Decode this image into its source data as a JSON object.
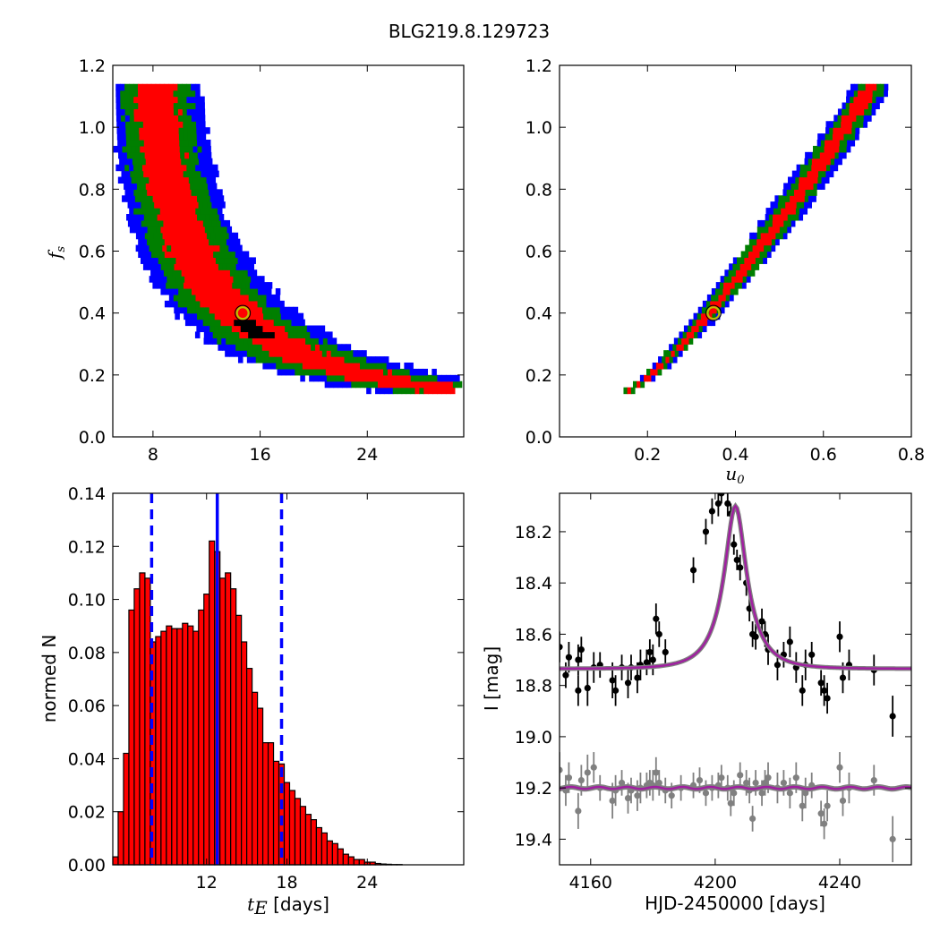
{
  "figure": {
    "title": "BLG219.8.129723"
  },
  "chart_data": [
    {
      "id": "tE_fs",
      "type": "heatmap",
      "xlim": [
        5,
        31.2
      ],
      "ylim": [
        0,
        1.2
      ],
      "xticks": [
        8,
        16,
        24
      ],
      "yticks": [
        0.0,
        0.2,
        0.4,
        0.6,
        0.8,
        1.0,
        1.2
      ],
      "ytick_labels": [
        "0.0",
        "0.2",
        "0.4",
        "0.6",
        "0.8",
        "1.0",
        "1.2"
      ],
      "xlabel": "",
      "ylabel": "f_s",
      "ylabel_main": "f",
      "ylabel_sub": "s",
      "contour_colors": {
        "outer": "#0000ff",
        "middle": "#007f00",
        "inner": "#ff0000",
        "core": "#000000"
      },
      "best_fit": {
        "x": 14.7,
        "y": 0.4,
        "color": "#bfbf00"
      }
    },
    {
      "id": "u0_fs",
      "type": "heatmap",
      "xlim": [
        0,
        0.8
      ],
      "ylim": [
        0,
        1.2
      ],
      "xticks": [
        0.2,
        0.4,
        0.6,
        0.8
      ],
      "xtick_labels": [
        "0.2",
        "0.4",
        "0.6",
        "0.8"
      ],
      "yticks": [
        0.0,
        0.2,
        0.4,
        0.6,
        0.8,
        1.0,
        1.2
      ],
      "ytick_labels": [
        "0.0",
        "0.2",
        "0.4",
        "0.6",
        "0.8",
        "1.0",
        "1.2"
      ],
      "xlabel": "u_0",
      "xlabel_main": "u",
      "xlabel_sub": "0",
      "best_fit": {
        "x": 0.35,
        "y": 0.4,
        "color": "#bfbf00"
      }
    },
    {
      "id": "tE_hist",
      "type": "bar",
      "xlim": [
        5,
        31.2
      ],
      "ylim": [
        0,
        0.14
      ],
      "xticks": [
        12,
        18,
        24
      ],
      "yticks": [
        0.0,
        0.02,
        0.04,
        0.06,
        0.08,
        0.1,
        0.12,
        0.14
      ],
      "ytick_labels": [
        "0.00",
        "0.02",
        "0.04",
        "0.06",
        "0.08",
        "0.10",
        "0.12",
        "0.14"
      ],
      "xlabel_main": "t",
      "xlabel_sub": "E",
      "xlabel_rest": " [days]",
      "ylabel": "normed N",
      "bin_start": 5.0,
      "bin_width": 0.4,
      "values": [
        0.003,
        0.02,
        0.042,
        0.096,
        0.104,
        0.11,
        0.108,
        0.084,
        0.086,
        0.088,
        0.09,
        0.089,
        0.089,
        0.091,
        0.09,
        0.088,
        0.096,
        0.102,
        0.122,
        0.118,
        0.108,
        0.11,
        0.104,
        0.094,
        0.084,
        0.074,
        0.065,
        0.059,
        0.046,
        0.046,
        0.039,
        0.038,
        0.031,
        0.028,
        0.025,
        0.022,
        0.019,
        0.017,
        0.014,
        0.012,
        0.009,
        0.008,
        0.006,
        0.004,
        0.003,
        0.002,
        0.002,
        0.001,
        0.001,
        0.0005,
        0.0003,
        0.0002,
        0.0001,
        0.0001,
        0,
        0
      ],
      "vlines": [
        {
          "x": 7.9,
          "style": "dashed",
          "color": "#0000ff"
        },
        {
          "x": 12.8,
          "style": "solid",
          "color": "#0000ff"
        },
        {
          "x": 17.6,
          "style": "dashed",
          "color": "#0000ff"
        }
      ],
      "bar_color": "#ff0000"
    },
    {
      "id": "lightcurve",
      "type": "scatter",
      "xlim": [
        4150,
        4263
      ],
      "ylim": [
        19.5,
        18.05
      ],
      "inverted_y": true,
      "xticks": [
        4160,
        4200,
        4240
      ],
      "yticks": [
        18.2,
        18.4,
        18.6,
        18.8,
        19.0,
        19.2,
        19.4
      ],
      "ytick_labels": [
        "18.2",
        "18.4",
        "18.6",
        "18.8",
        "19.0",
        "19.2",
        "19.4"
      ],
      "xlabel": "HJD-2450000 [days]",
      "ylabel": "I [mag]",
      "model": {
        "t0": 4206.5,
        "baseline": 18.735,
        "peak": 18.1,
        "width": 4.6,
        "color": "#a020a0"
      },
      "residual_baseline": 19.2,
      "series": [
        {
          "color": "#000000",
          "points": [
            [
              4150,
              18.65,
              0.06
            ],
            [
              4152,
              18.76,
              0.05
            ],
            [
              4153,
              18.69,
              0.06
            ],
            [
              4156,
              18.82,
              0.06
            ],
            [
              4156,
              18.7,
              0.06
            ],
            [
              4157,
              18.66,
              0.05
            ],
            [
              4159,
              18.81,
              0.07
            ],
            [
              4161,
              18.73,
              0.06
            ],
            [
              4163,
              18.72,
              0.05
            ],
            [
              4167,
              18.78,
              0.07
            ],
            [
              4168,
              18.82,
              0.06
            ],
            [
              4170,
              18.73,
              0.05
            ],
            [
              4172,
              18.79,
              0.06
            ],
            [
              4173,
              18.73,
              0.05
            ],
            [
              4175,
              18.77,
              0.06
            ],
            [
              4176,
              18.72,
              0.06
            ],
            [
              4178,
              18.71,
              0.05
            ],
            [
              4179,
              18.67,
              0.05
            ],
            [
              4180,
              18.7,
              0.06
            ],
            [
              4181,
              18.54,
              0.06
            ],
            [
              4182,
              18.6,
              0.05
            ],
            [
              4184,
              18.67,
              0.05
            ],
            [
              4193,
              18.35,
              0.05
            ],
            [
              4197,
              18.2,
              0.05
            ],
            [
              4199,
              18.12,
              0.05
            ],
            [
              4201,
              18.09,
              0.05
            ],
            [
              4202,
              18.05,
              0.04
            ],
            [
              4204,
              18.09,
              0.05
            ],
            [
              4205,
              18.13,
              0.04
            ],
            [
              4206,
              18.25,
              0.04
            ],
            [
              4207,
              18.31,
              0.04
            ],
            [
              4208,
              18.34,
              0.05
            ],
            [
              4210,
              18.4,
              0.05
            ],
            [
              4211,
              18.5,
              0.05
            ],
            [
              4212,
              18.6,
              0.05
            ],
            [
              4213,
              18.61,
              0.05
            ],
            [
              4215,
              18.55,
              0.05
            ],
            [
              4216,
              18.6,
              0.05
            ],
            [
              4217,
              18.66,
              0.06
            ],
            [
              4220,
              18.72,
              0.06
            ],
            [
              4222,
              18.68,
              0.05
            ],
            [
              4224,
              18.63,
              0.06
            ],
            [
              4226,
              18.73,
              0.06
            ],
            [
              4228,
              18.82,
              0.06
            ],
            [
              4229,
              18.72,
              0.06
            ],
            [
              4231,
              18.68,
              0.05
            ],
            [
              4234,
              18.79,
              0.05
            ],
            [
              4235,
              18.82,
              0.06
            ],
            [
              4236,
              18.85,
              0.06
            ],
            [
              4240,
              18.61,
              0.06
            ],
            [
              4241,
              18.77,
              0.06
            ],
            [
              4243,
              18.72,
              0.06
            ],
            [
              4251,
              18.74,
              0.06
            ],
            [
              4257,
              18.92,
              0.08
            ]
          ]
        },
        {
          "color": "#808080",
          "points": [
            [
              4150,
              19.13,
              0.07
            ],
            [
              4152,
              19.21,
              0.06
            ],
            [
              4153,
              19.16,
              0.06
            ],
            [
              4156,
              19.29,
              0.07
            ],
            [
              4157,
              19.17,
              0.06
            ],
            [
              4159,
              19.14,
              0.07
            ],
            [
              4161,
              19.12,
              0.06
            ],
            [
              4163,
              19.2,
              0.05
            ],
            [
              4167,
              19.25,
              0.07
            ],
            [
              4168,
              19.21,
              0.06
            ],
            [
              4170,
              19.18,
              0.05
            ],
            [
              4172,
              19.24,
              0.06
            ],
            [
              4173,
              19.21,
              0.05
            ],
            [
              4175,
              19.23,
              0.06
            ],
            [
              4176,
              19.2,
              0.06
            ],
            [
              4178,
              19.19,
              0.05
            ],
            [
              4179,
              19.18,
              0.05
            ],
            [
              4180,
              19.19,
              0.06
            ],
            [
              4181,
              19.14,
              0.06
            ],
            [
              4182,
              19.18,
              0.05
            ],
            [
              4184,
              19.21,
              0.05
            ],
            [
              4186,
              19.23,
              0.05
            ],
            [
              4189,
              19.2,
              0.05
            ],
            [
              4193,
              19.19,
              0.05
            ],
            [
              4195,
              19.17,
              0.05
            ],
            [
              4197,
              19.22,
              0.05
            ],
            [
              4199,
              19.2,
              0.05
            ],
            [
              4201,
              19.19,
              0.05
            ],
            [
              4202,
              19.16,
              0.05
            ],
            [
              4204,
              19.2,
              0.05
            ],
            [
              4205,
              19.26,
              0.05
            ],
            [
              4206,
              19.22,
              0.05
            ],
            [
              4208,
              19.15,
              0.05
            ],
            [
              4210,
              19.18,
              0.05
            ],
            [
              4211,
              19.21,
              0.05
            ],
            [
              4212,
              19.32,
              0.05
            ],
            [
              4213,
              19.18,
              0.05
            ],
            [
              4215,
              19.22,
              0.05
            ],
            [
              4216,
              19.18,
              0.05
            ],
            [
              4217,
              19.16,
              0.06
            ],
            [
              4220,
              19.2,
              0.06
            ],
            [
              4222,
              19.18,
              0.05
            ],
            [
              4224,
              19.22,
              0.06
            ],
            [
              4226,
              19.16,
              0.06
            ],
            [
              4228,
              19.27,
              0.06
            ],
            [
              4229,
              19.22,
              0.06
            ],
            [
              4231,
              19.19,
              0.05
            ],
            [
              4234,
              19.3,
              0.05
            ],
            [
              4235,
              19.34,
              0.06
            ],
            [
              4236,
              19.27,
              0.06
            ],
            [
              4240,
              19.12,
              0.06
            ],
            [
              4241,
              19.25,
              0.06
            ],
            [
              4243,
              19.2,
              0.06
            ],
            [
              4251,
              19.17,
              0.06
            ],
            [
              4257,
              19.4,
              0.09
            ]
          ]
        }
      ]
    }
  ]
}
